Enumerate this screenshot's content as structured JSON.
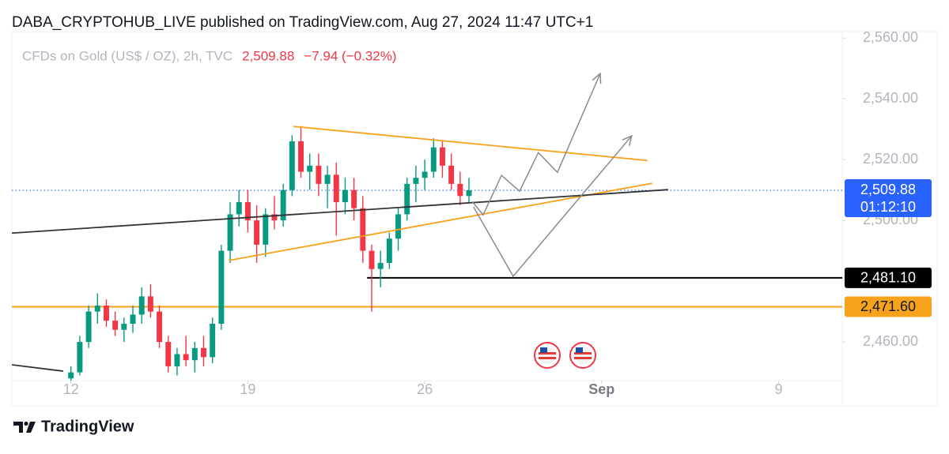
{
  "header": {
    "title": "DABA_CRYPTOHUB_LIVE published on TradingView.com, Aug 27, 2024 11:47 UTC+1"
  },
  "footer": {
    "brand": "TradingView"
  },
  "chart_data": {
    "type": "candlestick",
    "symbol": "CFDs on Gold (US$ / OZ), 2h, TVC",
    "last_price": {
      "value": 2509.88,
      "label": "2,509.88",
      "countdown": "01:12:10",
      "color": "#2962ff"
    },
    "change": "−7.94 (−0.32%)",
    "up_color": "#089981",
    "down_color": "#f23645",
    "xlim": [
      -1.67,
      21.8
    ],
    "ylim": [
      2447.3,
      2560.8
    ],
    "xticks": [
      {
        "value": 0,
        "label": "12"
      },
      {
        "value": 5,
        "label": "19"
      },
      {
        "value": 10,
        "label": "26"
      },
      {
        "value": 15,
        "label": "Sep"
      },
      {
        "value": 20,
        "label": "9"
      }
    ],
    "yticks": [
      {
        "value": 2560,
        "label": "2,560.00"
      },
      {
        "value": 2540,
        "label": "2,540.00"
      },
      {
        "value": 2520,
        "label": "2,520.00"
      },
      {
        "value": 2500,
        "label": "2,500.00"
      },
      {
        "value": 2460,
        "label": "2,460.00"
      }
    ],
    "grid": false,
    "x": [
      0,
      0.25,
      0.5,
      0.75,
      1,
      1.25,
      1.5,
      1.75,
      2,
      2.25,
      2.5,
      2.75,
      3,
      3.25,
      3.5,
      3.75,
      4,
      4.25,
      4.5,
      4.75,
      5,
      5.25,
      5.5,
      5.75,
      6,
      6.25,
      6.5,
      6.75,
      7,
      7.25,
      7.5,
      7.75,
      8,
      8.25,
      8.5,
      8.75,
      9,
      9.25,
      9.5,
      9.75,
      10,
      10.25,
      10.5,
      10.75,
      11,
      11.25
    ],
    "open": [
      2448,
      2450,
      2460,
      2470,
      2472,
      2467,
      2464,
      2466,
      2469,
      2475,
      2470,
      2460,
      2452,
      2456,
      2454,
      2458,
      2455,
      2466,
      2490,
      2502,
      2506,
      2500,
      2492,
      2502,
      2500,
      2510,
      2526,
      2516,
      2518,
      2512,
      2515,
      2506,
      2510,
      2504,
      2490,
      2484,
      2486,
      2494,
      2502,
      2512,
      2514,
      2516,
      2524,
      2518,
      2512,
      2508
    ],
    "high": [
      2452,
      2462,
      2472,
      2476,
      2474,
      2470,
      2468,
      2472,
      2478,
      2479,
      2472,
      2462,
      2458,
      2462,
      2460,
      2462,
      2468,
      2492,
      2506,
      2510,
      2510,
      2505,
      2504,
      2508,
      2512,
      2528,
      2531,
      2522,
      2522,
      2518,
      2519,
      2514,
      2514,
      2508,
      2492,
      2490,
      2496,
      2504,
      2514,
      2518,
      2520,
      2527,
      2526,
      2522,
      2516,
      2514
    ],
    "low": [
      2446,
      2449,
      2458,
      2466,
      2465,
      2462,
      2460,
      2463,
      2466,
      2468,
      2458,
      2450,
      2449,
      2452,
      2450,
      2452,
      2453,
      2464,
      2486,
      2498,
      2496,
      2486,
      2488,
      2497,
      2498,
      2508,
      2514,
      2510,
      2508,
      2504,
      2495,
      2502,
      2500,
      2486,
      2470,
      2478,
      2484,
      2490,
      2500,
      2506,
      2510,
      2514,
      2514,
      2510,
      2505,
      2506
    ],
    "close": [
      2450,
      2460,
      2470,
      2472,
      2467,
      2464,
      2466,
      2469,
      2475,
      2470,
      2460,
      2452,
      2456,
      2454,
      2458,
      2455,
      2466,
      2490,
      2502,
      2506,
      2500,
      2492,
      2502,
      2500,
      2510,
      2526,
      2516,
      2518,
      2512,
      2515,
      2506,
      2510,
      2504,
      2490,
      2484,
      2486,
      2494,
      2502,
      2512,
      2514,
      2516,
      2524,
      2518,
      2512,
      2508,
      2509.88
    ],
    "levels": [
      {
        "value": 2481.1,
        "label": "2,481.10",
        "color": "#000000",
        "start": 8.37
      },
      {
        "value": 2471.6,
        "label": "2,471.60",
        "color": "#f7a21b",
        "start": -1.67
      }
    ],
    "drawings": [
      {
        "color": "#f7a21b",
        "arrow": false,
        "points": [
          [
            6.29,
            2530.9
          ],
          [
            16.29,
            2519.7
          ]
        ]
      },
      {
        "color": "#f7a21b",
        "arrow": false,
        "points": [
          [
            4.46,
            2486.8
          ],
          [
            16.43,
            2512.2
          ]
        ]
      },
      {
        "color": "#333333",
        "arrow": false,
        "points": [
          [
            -1.67,
            2495.8
          ],
          [
            16.88,
            2510.1
          ]
        ]
      },
      {
        "color": "#333333",
        "arrow": false,
        "points": [
          [
            -1.67,
            2452.5
          ],
          [
            -0.22,
            2450.4
          ]
        ]
      },
      {
        "color": "#8a8a8a",
        "arrow": true,
        "points": [
          [
            11.34,
            2506.2
          ],
          [
            11.65,
            2501.8
          ],
          [
            12.17,
            2514.8
          ],
          [
            12.68,
            2509.6
          ],
          [
            13.21,
            2522.3
          ],
          [
            13.75,
            2515.8
          ],
          [
            14.96,
            2548.3
          ]
        ]
      },
      {
        "color": "#8a8a8a",
        "arrow": true,
        "points": [
          [
            11.38,
            2504.4
          ],
          [
            12.5,
            2481.6
          ],
          [
            15.85,
            2527.8
          ]
        ]
      }
    ]
  }
}
